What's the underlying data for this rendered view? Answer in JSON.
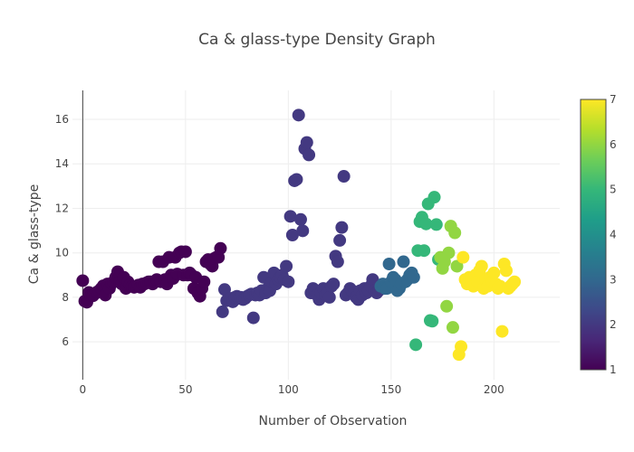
{
  "chart_data": {
    "type": "scatter",
    "title": "Ca & glass-type Density Graph",
    "xlabel": "Number of Observation",
    "ylabel": "Ca & glass-type",
    "xlim": [
      -5,
      232
    ],
    "ylim": [
      4.3,
      17.3
    ],
    "x_ticks": [
      0,
      50,
      100,
      150,
      200
    ],
    "y_ticks": [
      6,
      8,
      10,
      12,
      14,
      16
    ],
    "grid": true,
    "colorbar": {
      "ticks": [
        1,
        2,
        3,
        4,
        5,
        6,
        7
      ],
      "min": 1,
      "max": 7,
      "colorscale": [
        "#440154",
        "#482878",
        "#3e4989",
        "#31688e",
        "#26828e",
        "#1f9e89",
        "#35b779",
        "#6ece58",
        "#b5de2b",
        "#fde725"
      ]
    },
    "points": [
      [
        0,
        8.75,
        1
      ],
      [
        1,
        7.83,
        1
      ],
      [
        2,
        7.78,
        1
      ],
      [
        3,
        8.22,
        1
      ],
      [
        4,
        8.07,
        1
      ],
      [
        5,
        8.07,
        1
      ],
      [
        6,
        8.17,
        1
      ],
      [
        7,
        8.24,
        1
      ],
      [
        8,
        8.3,
        1
      ],
      [
        9,
        8.4,
        1
      ],
      [
        10,
        8.52,
        1
      ],
      [
        11,
        8.1,
        1
      ],
      [
        12,
        8.6,
        1
      ],
      [
        13,
        8.4,
        1
      ],
      [
        14,
        8.62,
        1
      ],
      [
        15,
        8.7,
        1
      ],
      [
        16,
        8.9,
        1
      ],
      [
        17,
        9.15,
        1
      ],
      [
        18,
        8.7,
        1
      ],
      [
        19,
        8.6,
        1
      ],
      [
        20,
        8.9,
        1
      ],
      [
        21,
        8.4,
        1
      ],
      [
        22,
        8.7,
        1
      ],
      [
        23,
        8.55,
        1
      ],
      [
        24,
        8.5,
        1
      ],
      [
        25,
        8.45,
        1
      ],
      [
        26,
        8.5,
        1
      ],
      [
        27,
        8.55,
        1
      ],
      [
        28,
        8.45,
        1
      ],
      [
        29,
        8.6,
        1
      ],
      [
        30,
        8.6,
        1
      ],
      [
        31,
        8.65,
        1
      ],
      [
        32,
        8.7,
        1
      ],
      [
        33,
        8.7,
        1
      ],
      [
        34,
        8.6,
        1
      ],
      [
        35,
        8.7,
        1
      ],
      [
        36,
        8.8,
        1
      ],
      [
        37,
        9.6,
        1
      ],
      [
        38,
        8.7,
        1
      ],
      [
        39,
        9.6,
        1
      ],
      [
        40,
        8.8,
        1
      ],
      [
        41,
        8.6,
        1
      ],
      [
        42,
        9.8,
        1
      ],
      [
        43,
        9.0,
        1
      ],
      [
        44,
        8.85,
        1
      ],
      [
        45,
        9.8,
        1
      ],
      [
        46,
        9.05,
        1
      ],
      [
        47,
        10.0,
        1
      ],
      [
        48,
        10.05,
        1
      ],
      [
        49,
        9.0,
        1
      ],
      [
        50,
        10.05,
        1
      ],
      [
        51,
        9.0,
        1
      ],
      [
        52,
        9.1,
        1
      ],
      [
        53,
        9.0,
        1
      ],
      [
        54,
        8.4,
        1
      ],
      [
        55,
        8.9,
        1
      ],
      [
        56,
        8.2,
        1
      ],
      [
        57,
        8.05,
        1
      ],
      [
        58,
        8.4,
        1
      ],
      [
        59,
        8.7,
        1
      ],
      [
        60,
        9.6,
        1
      ],
      [
        61,
        9.7,
        1
      ],
      [
        62,
        9.5,
        1
      ],
      [
        63,
        9.4,
        1
      ],
      [
        64,
        9.75,
        1
      ],
      [
        65,
        9.8,
        1
      ],
      [
        66,
        9.8,
        1
      ],
      [
        67,
        10.2,
        1
      ],
      [
        68,
        7.35,
        2
      ],
      [
        69,
        8.35,
        2
      ],
      [
        70,
        7.85,
        2
      ],
      [
        71,
        7.9,
        2
      ],
      [
        72,
        7.95,
        2
      ],
      [
        73,
        7.8,
        2
      ],
      [
        74,
        8.0,
        2
      ],
      [
        75,
        8.05,
        2
      ],
      [
        76,
        7.95,
        2
      ],
      [
        77,
        8.0,
        2
      ],
      [
        78,
        7.9,
        2
      ],
      [
        79,
        7.95,
        2
      ],
      [
        80,
        8.05,
        2
      ],
      [
        81,
        8.1,
        2
      ],
      [
        82,
        8.15,
        2
      ],
      [
        83,
        7.08,
        2
      ],
      [
        84,
        8.1,
        2
      ],
      [
        85,
        8.2,
        2
      ],
      [
        86,
        8.1,
        2
      ],
      [
        87,
        8.3,
        2
      ],
      [
        88,
        8.9,
        2
      ],
      [
        89,
        8.2,
        2
      ],
      [
        90,
        8.4,
        2
      ],
      [
        91,
        8.3,
        2
      ],
      [
        92,
        8.7,
        2
      ],
      [
        93,
        9.1,
        2
      ],
      [
        94,
        8.6,
        2
      ],
      [
        95,
        8.8,
        2
      ],
      [
        96,
        8.9,
        2
      ],
      [
        97,
        9.0,
        2
      ],
      [
        98,
        8.8,
        2
      ],
      [
        99,
        9.4,
        2
      ],
      [
        100,
        8.7,
        2
      ],
      [
        101,
        11.64,
        2
      ],
      [
        102,
        10.8,
        2
      ],
      [
        103,
        13.24,
        2
      ],
      [
        104,
        13.3,
        2
      ],
      [
        105,
        16.19,
        2
      ],
      [
        106,
        11.5,
        2
      ],
      [
        107,
        10.99,
        2
      ],
      [
        108,
        14.68,
        2
      ],
      [
        109,
        14.96,
        2
      ],
      [
        110,
        14.4,
        2
      ],
      [
        111,
        8.2,
        2
      ],
      [
        112,
        8.4,
        2
      ],
      [
        113,
        8.3,
        2
      ],
      [
        114,
        8.1,
        2
      ],
      [
        115,
        7.9,
        2
      ],
      [
        116,
        8.2,
        2
      ],
      [
        117,
        8.4,
        2
      ],
      [
        118,
        8.1,
        2
      ],
      [
        119,
        8.2,
        2
      ],
      [
        120,
        8.0,
        2
      ],
      [
        121,
        8.5,
        2
      ],
      [
        122,
        8.6,
        2
      ],
      [
        123,
        9.85,
        2
      ],
      [
        124,
        9.6,
        2
      ],
      [
        125,
        10.56,
        2
      ],
      [
        126,
        11.14,
        2
      ],
      [
        127,
        13.44,
        2
      ],
      [
        128,
        8.1,
        2
      ],
      [
        129,
        8.2,
        2
      ],
      [
        130,
        8.4,
        2
      ],
      [
        131,
        8.3,
        2
      ],
      [
        132,
        8.2,
        2
      ],
      [
        133,
        8.0,
        2
      ],
      [
        134,
        7.9,
        2
      ],
      [
        135,
        8.3,
        2
      ],
      [
        136,
        8.1,
        2
      ],
      [
        137,
        8.4,
        2
      ],
      [
        138,
        8.2,
        2
      ],
      [
        139,
        8.3,
        2
      ],
      [
        140,
        8.5,
        2
      ],
      [
        141,
        8.8,
        2
      ],
      [
        142,
        8.3,
        2
      ],
      [
        143,
        8.2,
        2
      ],
      [
        144,
        8.3,
        2
      ],
      [
        145,
        8.5,
        3
      ],
      [
        146,
        8.6,
        3
      ],
      [
        147,
        8.4,
        3
      ],
      [
        148,
        8.4,
        3
      ],
      [
        149,
        9.5,
        3
      ],
      [
        150,
        8.7,
        3
      ],
      [
        151,
        8.9,
        3
      ],
      [
        152,
        8.8,
        3
      ],
      [
        153,
        8.3,
        3
      ],
      [
        154,
        8.4,
        3
      ],
      [
        155,
        8.6,
        3
      ],
      [
        156,
        9.6,
        3
      ],
      [
        157,
        8.7,
        3
      ],
      [
        158,
        8.8,
        3
      ],
      [
        159,
        9.0,
        3
      ],
      [
        160,
        9.1,
        3
      ],
      [
        161,
        8.9,
        3
      ],
      [
        162,
        5.87,
        5
      ],
      [
        163,
        10.1,
        5
      ],
      [
        164,
        11.4,
        5
      ],
      [
        165,
        11.6,
        5
      ],
      [
        166,
        10.1,
        5
      ],
      [
        167,
        11.3,
        5
      ],
      [
        168,
        12.2,
        5
      ],
      [
        169,
        6.96,
        5
      ],
      [
        170,
        6.93,
        5
      ],
      [
        171,
        12.5,
        5
      ],
      [
        172,
        11.27,
        5
      ],
      [
        173,
        9.7,
        5
      ],
      [
        174,
        9.8,
        6
      ],
      [
        175,
        9.3,
        6
      ],
      [
        176,
        9.6,
        6
      ],
      [
        177,
        7.6,
        6
      ],
      [
        178,
        10.0,
        6
      ],
      [
        179,
        11.2,
        6
      ],
      [
        180,
        6.65,
        6
      ],
      [
        181,
        10.9,
        6
      ],
      [
        182,
        9.4,
        6
      ],
      [
        183,
        5.43,
        7
      ],
      [
        184,
        5.79,
        7
      ],
      [
        185,
        9.8,
        7
      ],
      [
        186,
        8.8,
        7
      ],
      [
        187,
        8.6,
        7
      ],
      [
        188,
        8.9,
        7
      ],
      [
        189,
        8.8,
        7
      ],
      [
        190,
        8.5,
        7
      ],
      [
        191,
        9.0,
        7
      ],
      [
        192,
        8.7,
        7
      ],
      [
        193,
        9.2,
        7
      ],
      [
        194,
        9.4,
        7
      ],
      [
        195,
        8.4,
        7
      ],
      [
        196,
        8.8,
        7
      ],
      [
        197,
        8.5,
        7
      ],
      [
        198,
        8.9,
        7
      ],
      [
        199,
        8.7,
        7
      ],
      [
        200,
        9.1,
        7
      ],
      [
        201,
        8.6,
        7
      ],
      [
        202,
        8.4,
        7
      ],
      [
        203,
        8.5,
        7
      ],
      [
        204,
        6.47,
        7
      ],
      [
        205,
        9.5,
        7
      ],
      [
        206,
        9.2,
        7
      ],
      [
        207,
        8.4,
        7
      ],
      [
        208,
        8.5,
        7
      ],
      [
        209,
        8.6,
        7
      ],
      [
        210,
        8.7,
        7
      ]
    ]
  }
}
